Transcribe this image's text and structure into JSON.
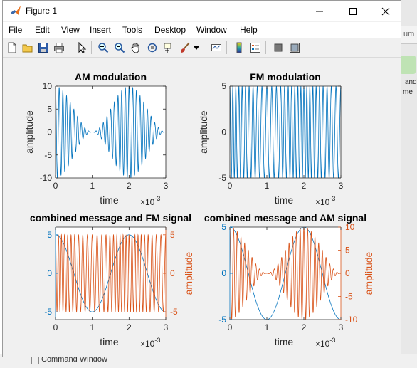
{
  "window": {
    "title": "Figure 1",
    "controls": [
      "minimize",
      "maximize",
      "close"
    ]
  },
  "menu": [
    "File",
    "Edit",
    "View",
    "Insert",
    "Tools",
    "Desktop",
    "Window",
    "Help"
  ],
  "toolbar": {
    "buttons": [
      "new-figure-icon",
      "open-file-icon",
      "save-icon",
      "print-icon",
      "pointer-icon",
      "zoom-in-icon",
      "zoom-out-icon",
      "pan-icon",
      "rotate-3d-icon",
      "data-cursor-icon",
      "brush-icon",
      "brush-dropdown-icon",
      "link-plot-icon",
      "insert-colorbar-icon",
      "insert-legend-icon",
      "hide-plot-tools-icon",
      "show-plot-tools-icon"
    ]
  },
  "background": {
    "right_text_1": "um",
    "right_text_2": "and",
    "right_text_3": "me",
    "command_window": "Command Window"
  },
  "colors": {
    "blue": "#0072bd",
    "orange": "#d95319",
    "axes_bg": "#ffffff",
    "figure_bg": "#f0f0f0"
  },
  "chart_data": [
    {
      "type": "line",
      "title": "AM modulation",
      "xlabel": "time",
      "ylabel": "amplitude",
      "x_exponent": "×10-3",
      "xlim": [
        0,
        0.003
      ],
      "ylim": [
        -10,
        10
      ],
      "xticks": [
        "0",
        "1",
        "2",
        "3"
      ],
      "yticks": [
        "-10",
        "-5",
        "0",
        "5",
        "10"
      ],
      "series": [
        {
          "color": "#0072bd",
          "formula": "5*(1+cos(2*pi*500*t))*cos(2*pi*10000*t)",
          "samples": [
            [
              0,
              10
            ],
            [
              0.001,
              0
            ],
            [
              0.002,
              10
            ],
            [
              0.003,
              0
            ]
          ]
        }
      ]
    },
    {
      "type": "line",
      "title": "FM modulation",
      "xlabel": "time",
      "ylabel": "amplitude",
      "x_exponent": "×10-3",
      "xlim": [
        0,
        0.003
      ],
      "ylim": [
        -5,
        5
      ],
      "xticks": [
        "0",
        "1",
        "2",
        "3"
      ],
      "yticks": [
        "-5",
        "0",
        "5"
      ],
      "series": [
        {
          "color": "#0072bd",
          "formula": "5*cos(2*pi*10000*t + 5*sin(2*pi*500*t))",
          "amplitude": 5
        }
      ]
    },
    {
      "type": "line",
      "title": "combined message and FM signal",
      "xlabel": "time",
      "ylabel_right": "amplitude",
      "x_exponent": "×10-3",
      "xlim": [
        0,
        0.003
      ],
      "ylim_left": [
        -6,
        6
      ],
      "ylim_right": [
        -6,
        6
      ],
      "xticks": [
        "0",
        "1",
        "2",
        "3"
      ],
      "yticks_left": [
        "-5",
        "0",
        "5"
      ],
      "yticks_right": [
        "-5",
        "0",
        "5"
      ],
      "series": [
        {
          "axis": "left",
          "color": "#0072bd",
          "formula": "5*cos(2*pi*500*t)",
          "samples": [
            [
              0,
              5
            ],
            [
              0.001,
              -5
            ],
            [
              0.002,
              5
            ],
            [
              0.003,
              -5
            ]
          ]
        },
        {
          "axis": "right",
          "color": "#d95319",
          "formula": "5*cos(2*pi*10000*t + 5*sin(2*pi*500*t))",
          "amplitude": 5
        }
      ]
    },
    {
      "type": "line",
      "title": "combined message and AM signal",
      "xlabel": "time",
      "ylabel_right": "amplitude",
      "x_exponent": "×10-3",
      "xlim": [
        0,
        0.003
      ],
      "ylim_left": [
        -5,
        5
      ],
      "ylim_right": [
        -10,
        10
      ],
      "xticks": [
        "0",
        "1",
        "2",
        "3"
      ],
      "yticks_left": [
        "-5",
        "0",
        "5"
      ],
      "yticks_right": [
        "-10",
        "-5",
        "0",
        "5",
        "10"
      ],
      "series": [
        {
          "axis": "left",
          "color": "#0072bd",
          "formula": "5*cos(2*pi*500*t)",
          "samples": [
            [
              0,
              5
            ],
            [
              0.001,
              -5
            ],
            [
              0.002,
              5
            ],
            [
              0.003,
              -5
            ]
          ]
        },
        {
          "axis": "right",
          "color": "#d95319",
          "formula": "5*(1+cos(2*pi*500*t))*cos(2*pi*10000*t)",
          "samples": [
            [
              0,
              10
            ],
            [
              0.001,
              0
            ],
            [
              0.002,
              10
            ],
            [
              0.003,
              0
            ]
          ]
        }
      ]
    }
  ]
}
